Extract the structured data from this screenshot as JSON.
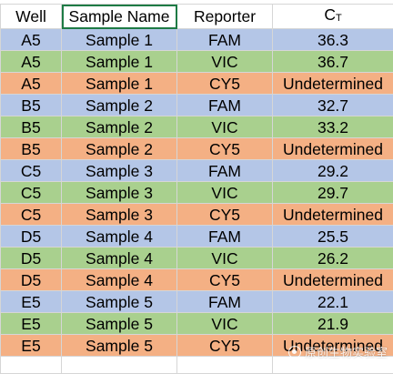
{
  "colors": {
    "fam_row": "#b4c6e7",
    "vic_row": "#a9d08e",
    "cy5_row": "#f4b084",
    "gridline": "#d6d6d6",
    "selection": "#1e7b45"
  },
  "table": {
    "headers": {
      "well": "Well",
      "sample_name": "Sample Name",
      "reporter": "Reporter",
      "ct_main": "C",
      "ct_sub": "T"
    },
    "rows": [
      {
        "well": "A5",
        "sample": "Sample 1",
        "reporter": "FAM",
        "ct": "36.3"
      },
      {
        "well": "A5",
        "sample": "Sample 1",
        "reporter": "VIC",
        "ct": "36.7"
      },
      {
        "well": "A5",
        "sample": "Sample 1",
        "reporter": "CY5",
        "ct": "Undetermined"
      },
      {
        "well": "B5",
        "sample": "Sample 2",
        "reporter": "FAM",
        "ct": "32.7"
      },
      {
        "well": "B5",
        "sample": "Sample 2",
        "reporter": "VIC",
        "ct": "33.2"
      },
      {
        "well": "B5",
        "sample": "Sample 2",
        "reporter": "CY5",
        "ct": "Undetermined"
      },
      {
        "well": "C5",
        "sample": "Sample 3",
        "reporter": "FAM",
        "ct": "29.2"
      },
      {
        "well": "C5",
        "sample": "Sample 3",
        "reporter": "VIC",
        "ct": "29.7"
      },
      {
        "well": "C5",
        "sample": "Sample 3",
        "reporter": "CY5",
        "ct": "Undetermined"
      },
      {
        "well": "D5",
        "sample": "Sample 4",
        "reporter": "FAM",
        "ct": "25.5"
      },
      {
        "well": "D5",
        "sample": "Sample 4",
        "reporter": "VIC",
        "ct": "26.2"
      },
      {
        "well": "D5",
        "sample": "Sample 4",
        "reporter": "CY5",
        "ct": "Undetermined"
      },
      {
        "well": "E5",
        "sample": "Sample 5",
        "reporter": "FAM",
        "ct": "22.1"
      },
      {
        "well": "E5",
        "sample": "Sample 5",
        "reporter": "VIC",
        "ct": "21.9"
      },
      {
        "well": "E5",
        "sample": "Sample 5",
        "reporter": "CY5",
        "ct": "Undetermined"
      }
    ]
  },
  "watermark": {
    "icon": "wechat-channel-icon",
    "text": "原创生物实验室"
  }
}
